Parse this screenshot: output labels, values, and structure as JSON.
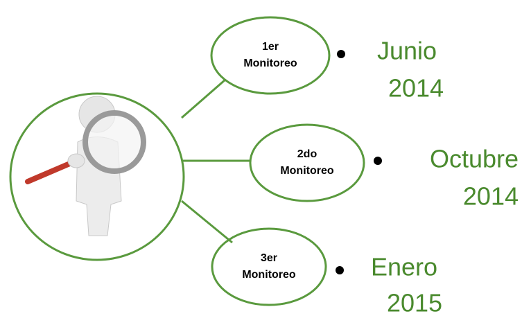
{
  "nodes": [
    {
      "label": [
        "1er",
        "Monitoreo"
      ],
      "date": [
        "Junio",
        "2014"
      ]
    },
    {
      "label": [
        "2do",
        "Monitoreo"
      ],
      "date": [
        "Octubre",
        "2014"
      ]
    },
    {
      "label": [
        "3er",
        "Monitoreo"
      ],
      "date": [
        "Enero",
        "2015"
      ]
    }
  ]
}
